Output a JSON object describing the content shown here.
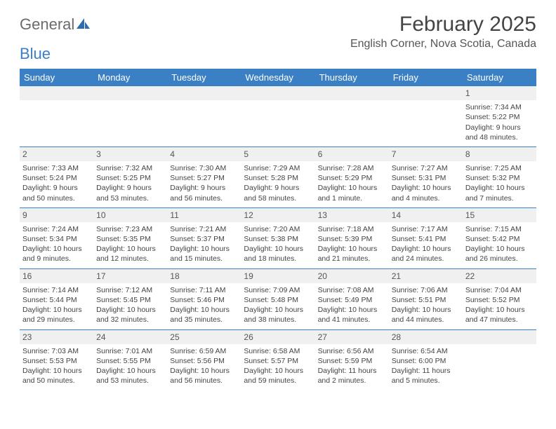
{
  "logo": {
    "text1": "General",
    "text2": "Blue"
  },
  "title": "February 2025",
  "location": "English Corner, Nova Scotia, Canada",
  "colors": {
    "accent": "#3b7fc4",
    "header_text": "#ffffff",
    "daybar_bg": "#f0f0f0",
    "body_text": "#444444",
    "title_text": "#444444"
  },
  "columns": [
    "Sunday",
    "Monday",
    "Tuesday",
    "Wednesday",
    "Thursday",
    "Friday",
    "Saturday"
  ],
  "weeks": [
    [
      null,
      null,
      null,
      null,
      null,
      null,
      {
        "n": "1",
        "sr": "Sunrise: 7:34 AM",
        "ss": "Sunset: 5:22 PM",
        "dl": "Daylight: 9 hours and 48 minutes."
      }
    ],
    [
      {
        "n": "2",
        "sr": "Sunrise: 7:33 AM",
        "ss": "Sunset: 5:24 PM",
        "dl": "Daylight: 9 hours and 50 minutes."
      },
      {
        "n": "3",
        "sr": "Sunrise: 7:32 AM",
        "ss": "Sunset: 5:25 PM",
        "dl": "Daylight: 9 hours and 53 minutes."
      },
      {
        "n": "4",
        "sr": "Sunrise: 7:30 AM",
        "ss": "Sunset: 5:27 PM",
        "dl": "Daylight: 9 hours and 56 minutes."
      },
      {
        "n": "5",
        "sr": "Sunrise: 7:29 AM",
        "ss": "Sunset: 5:28 PM",
        "dl": "Daylight: 9 hours and 58 minutes."
      },
      {
        "n": "6",
        "sr": "Sunrise: 7:28 AM",
        "ss": "Sunset: 5:29 PM",
        "dl": "Daylight: 10 hours and 1 minute."
      },
      {
        "n": "7",
        "sr": "Sunrise: 7:27 AM",
        "ss": "Sunset: 5:31 PM",
        "dl": "Daylight: 10 hours and 4 minutes."
      },
      {
        "n": "8",
        "sr": "Sunrise: 7:25 AM",
        "ss": "Sunset: 5:32 PM",
        "dl": "Daylight: 10 hours and 7 minutes."
      }
    ],
    [
      {
        "n": "9",
        "sr": "Sunrise: 7:24 AM",
        "ss": "Sunset: 5:34 PM",
        "dl": "Daylight: 10 hours and 9 minutes."
      },
      {
        "n": "10",
        "sr": "Sunrise: 7:23 AM",
        "ss": "Sunset: 5:35 PM",
        "dl": "Daylight: 10 hours and 12 minutes."
      },
      {
        "n": "11",
        "sr": "Sunrise: 7:21 AM",
        "ss": "Sunset: 5:37 PM",
        "dl": "Daylight: 10 hours and 15 minutes."
      },
      {
        "n": "12",
        "sr": "Sunrise: 7:20 AM",
        "ss": "Sunset: 5:38 PM",
        "dl": "Daylight: 10 hours and 18 minutes."
      },
      {
        "n": "13",
        "sr": "Sunrise: 7:18 AM",
        "ss": "Sunset: 5:39 PM",
        "dl": "Daylight: 10 hours and 21 minutes."
      },
      {
        "n": "14",
        "sr": "Sunrise: 7:17 AM",
        "ss": "Sunset: 5:41 PM",
        "dl": "Daylight: 10 hours and 24 minutes."
      },
      {
        "n": "15",
        "sr": "Sunrise: 7:15 AM",
        "ss": "Sunset: 5:42 PM",
        "dl": "Daylight: 10 hours and 26 minutes."
      }
    ],
    [
      {
        "n": "16",
        "sr": "Sunrise: 7:14 AM",
        "ss": "Sunset: 5:44 PM",
        "dl": "Daylight: 10 hours and 29 minutes."
      },
      {
        "n": "17",
        "sr": "Sunrise: 7:12 AM",
        "ss": "Sunset: 5:45 PM",
        "dl": "Daylight: 10 hours and 32 minutes."
      },
      {
        "n": "18",
        "sr": "Sunrise: 7:11 AM",
        "ss": "Sunset: 5:46 PM",
        "dl": "Daylight: 10 hours and 35 minutes."
      },
      {
        "n": "19",
        "sr": "Sunrise: 7:09 AM",
        "ss": "Sunset: 5:48 PM",
        "dl": "Daylight: 10 hours and 38 minutes."
      },
      {
        "n": "20",
        "sr": "Sunrise: 7:08 AM",
        "ss": "Sunset: 5:49 PM",
        "dl": "Daylight: 10 hours and 41 minutes."
      },
      {
        "n": "21",
        "sr": "Sunrise: 7:06 AM",
        "ss": "Sunset: 5:51 PM",
        "dl": "Daylight: 10 hours and 44 minutes."
      },
      {
        "n": "22",
        "sr": "Sunrise: 7:04 AM",
        "ss": "Sunset: 5:52 PM",
        "dl": "Daylight: 10 hours and 47 minutes."
      }
    ],
    [
      {
        "n": "23",
        "sr": "Sunrise: 7:03 AM",
        "ss": "Sunset: 5:53 PM",
        "dl": "Daylight: 10 hours and 50 minutes."
      },
      {
        "n": "24",
        "sr": "Sunrise: 7:01 AM",
        "ss": "Sunset: 5:55 PM",
        "dl": "Daylight: 10 hours and 53 minutes."
      },
      {
        "n": "25",
        "sr": "Sunrise: 6:59 AM",
        "ss": "Sunset: 5:56 PM",
        "dl": "Daylight: 10 hours and 56 minutes."
      },
      {
        "n": "26",
        "sr": "Sunrise: 6:58 AM",
        "ss": "Sunset: 5:57 PM",
        "dl": "Daylight: 10 hours and 59 minutes."
      },
      {
        "n": "27",
        "sr": "Sunrise: 6:56 AM",
        "ss": "Sunset: 5:59 PM",
        "dl": "Daylight: 11 hours and 2 minutes."
      },
      {
        "n": "28",
        "sr": "Sunrise: 6:54 AM",
        "ss": "Sunset: 6:00 PM",
        "dl": "Daylight: 11 hours and 5 minutes."
      },
      null
    ]
  ]
}
